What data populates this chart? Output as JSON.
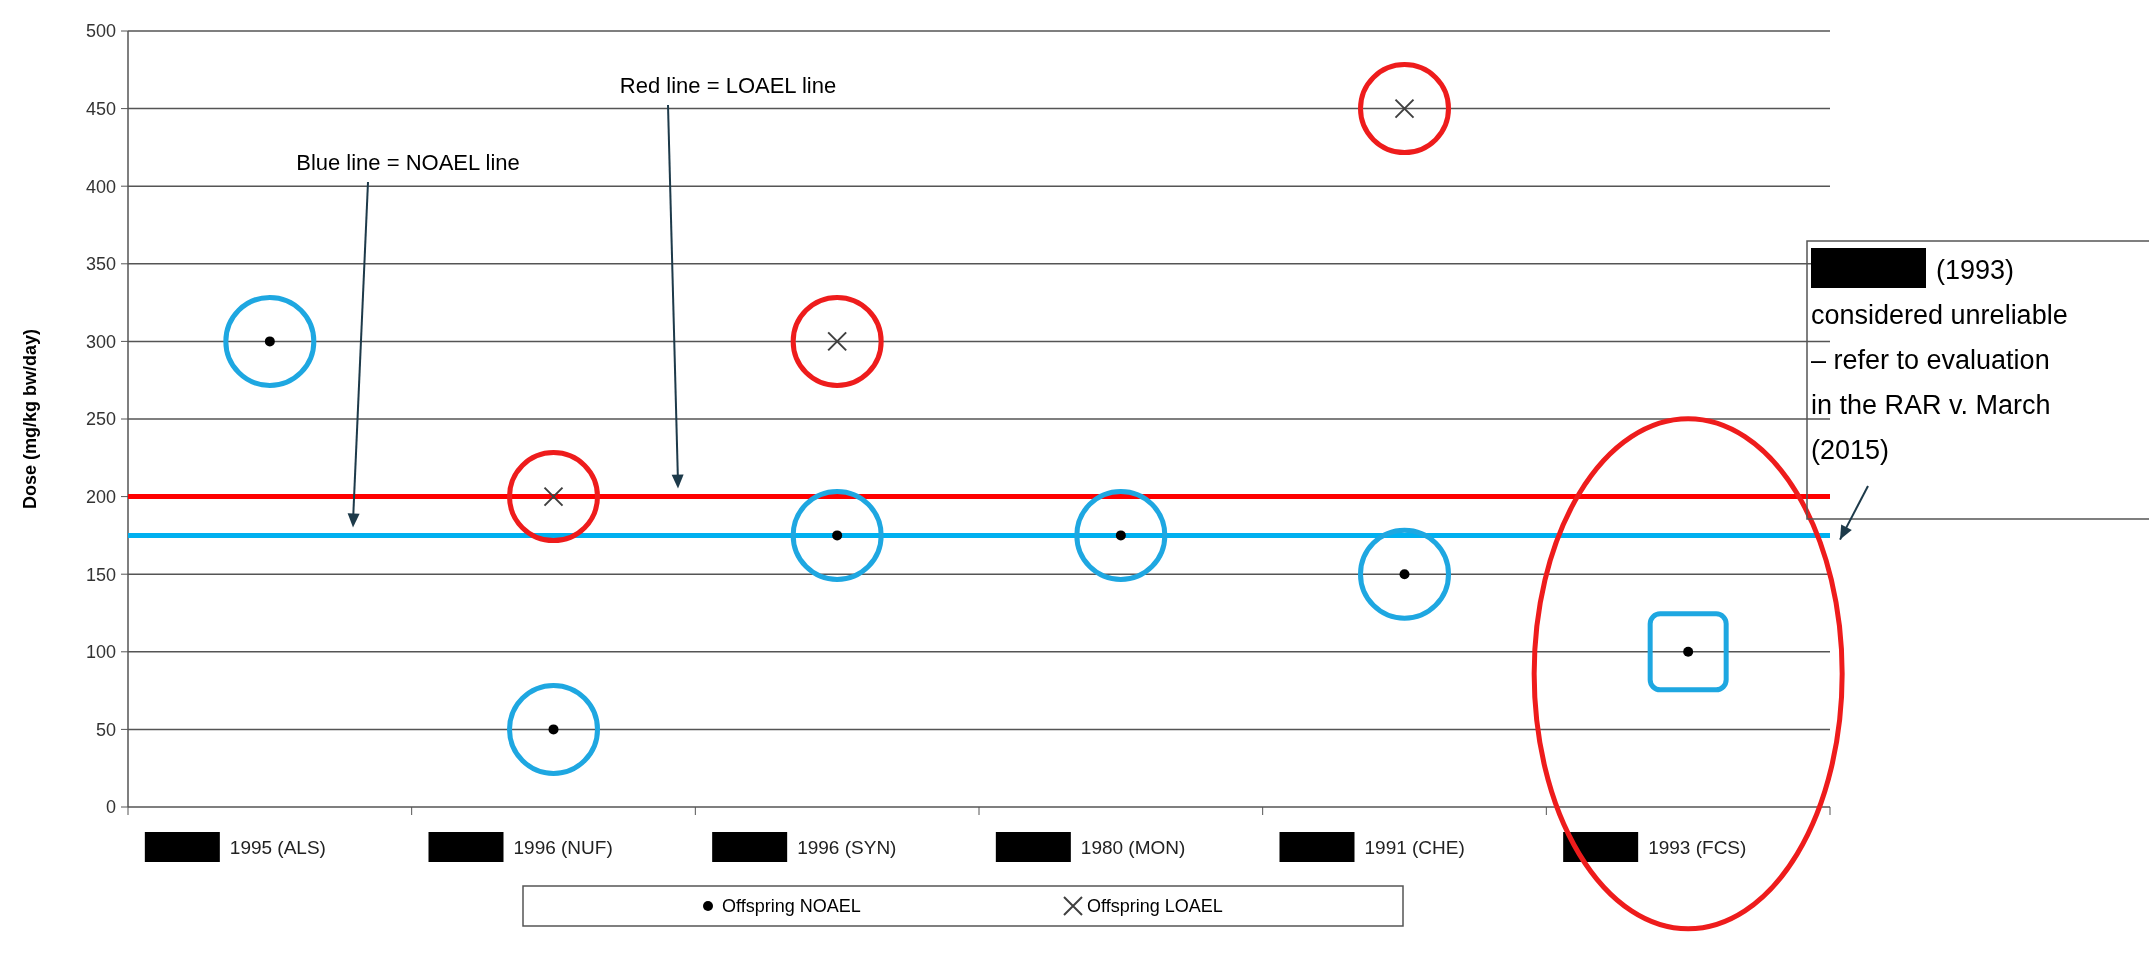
{
  "chart_data": {
    "type": "scatter",
    "ylabel": "Dose (mg/kg bw/day)",
    "categories": [
      "1995 (ALS)",
      "1996 (NUF)",
      "1996 (SYN)",
      "1980 (MON)",
      "1991 (CHE)",
      "1993 (FCS)"
    ],
    "series": [
      {
        "name": "Offspring NOAEL",
        "color": "#000000",
        "marker": "circle",
        "values": [
          300,
          50,
          175,
          175,
          150,
          100
        ]
      },
      {
        "name": "Offspring LOAEL",
        "color": "#404040",
        "marker": "cross",
        "values": [
          null,
          200,
          300,
          null,
          450,
          null
        ]
      }
    ],
    "ylim": [
      0,
      500
    ],
    "yticks": [
      0,
      50,
      100,
      150,
      200,
      250,
      300,
      350,
      400,
      450,
      500
    ],
    "grid": "y",
    "legend": "bottom",
    "ref_lines": [
      {
        "axis": "y",
        "value": 200,
        "color": "#ff0000"
      },
      {
        "axis": "y",
        "value": 175,
        "color": "#00b0f0"
      }
    ],
    "annotations": [
      "(1993) considered unreliable – refer  to evaluation in the RAR v. March (2015)",
      "Red line = LOAEL line",
      "Blue line = NOAEL line"
    ]
  }
}
